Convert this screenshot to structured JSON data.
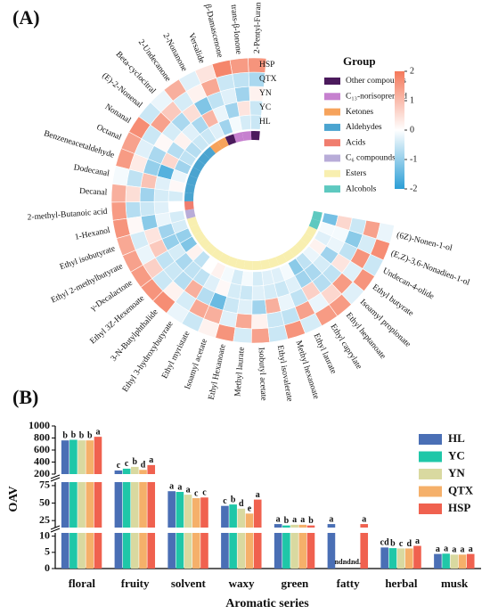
{
  "chart_data": [
    {
      "type": "circular-heatmap",
      "panel": "(A)",
      "categories": [
        "2-Pentyl-Furan",
        "trans-β-Ionone",
        "β-Damascenone",
        "Versalide",
        "2-Nonanone",
        "2-Undecanone",
        "Beta-cyclocitral",
        "(E)-2-Nonenal",
        "Nonanal",
        "Octanal",
        "Benzeneacetaldehyde",
        "Dodecanal",
        "Decanal",
        "2-methyl-Butanoic acid",
        "1-Hexanol",
        "Ethyl isobutyrate",
        "Ethyl 2-methylbutyrate",
        "γ-Decalactone",
        "Ethyl 3Z-Hexenoate",
        "3-N-Butylphthalide",
        "Ethyl 3-hydroxybutyrate",
        "Ethyl myristate",
        "Isoamyl acetate",
        "Ethyl Hexanoate",
        "Methyl laurate",
        "Isobutyl acetate",
        "Ethyl isovalerate",
        "Methyl hexanoate",
        "Ethyl laurate",
        "Ethyl caprylate",
        "Ethyl heptanoate",
        "Isoamyl propionate",
        "Ethyl butyrate",
        "Undecan-4-olide",
        "(E,Z)-3,6-Nonadien-1-ol",
        "(6Z)-Nonen-1-ol"
      ],
      "groups": [
        0,
        1,
        1,
        0,
        2,
        2,
        3,
        3,
        3,
        3,
        3,
        3,
        3,
        4,
        5,
        6,
        6,
        6,
        6,
        6,
        6,
        6,
        6,
        6,
        6,
        6,
        6,
        6,
        6,
        6,
        6,
        6,
        6,
        6,
        7,
        7
      ],
      "series": [
        {
          "name": "HL",
          "values": [
            -0.5,
            -0.4,
            -0.1,
            -0.9,
            -0.3,
            -0.5,
            -0.5,
            -0.7,
            -0.6,
            -0.9,
            -0.2,
            0.1,
            -0.4,
            0,
            -0.4,
            -0.4,
            -1.0,
            -1.2,
            0.2,
            -0.6,
            0,
            0.2,
            -0.1,
            -0.4,
            -0.1,
            -0.4,
            -0.3,
            -0.3,
            -0.1,
            -1.1,
            -0.6,
            -0.2,
            0.2,
            -0.3,
            -0.1,
            -1.3
          ]
        },
        {
          "name": "YC",
          "values": [
            -0.5,
            0.4,
            -0.9,
            -0.2,
            1.1,
            -0.8,
            -0.3,
            0.2,
            -0.7,
            0.6,
            -1.6,
            -0.3,
            -0.4,
            -0.3,
            -0.2,
            -0.9,
            -1.0,
            -0.4,
            -0.8,
            -0.6,
            -0.6,
            -0.3,
            0.1,
            -0.4,
            -0.5,
            -0.3,
            -0.4,
            -0.5,
            -0.3,
            -0.9,
            -0.8,
            -0.4,
            -0.9,
            -0.2,
            -0.1,
            0.6
          ]
        },
        {
          "name": "YN",
          "values": [
            0.2,
            -0.9,
            -0.3,
            -0.6,
            -1.2,
            0.5,
            -0.8,
            -0.4,
            0.1,
            -0.8,
            -1.0,
            0.9,
            -0.9,
            -0.5,
            -1.1,
            0.4,
            0.8,
            -0.6,
            -0.5,
            -0.7,
            1.2,
            -0.7,
            -1.4,
            -0.5,
            -0.3,
            -0.9,
            1.2,
            -0.2,
            -0.6,
            0.7,
            -0.7,
            -0.6,
            0.4,
            -0.6,
            -1.1,
            -0.5
          ]
        },
        {
          "name": "QTX",
          "values": [
            -0.8,
            -0.6,
            -0.5,
            1.3,
            0.2,
            -0.4,
            0.8,
            1.4,
            -0.5,
            -0.3,
            0.3,
            -0.6,
            0.5,
            -0.7,
            0.1,
            -0.4,
            -0.2,
            0.7,
            -0.5,
            0.2,
            -0.4,
            1.3,
            1.2,
            -0.3,
            1.3,
            0.2,
            -0.5,
            -0.6,
            1.4,
            -0.2,
            0.6,
            1.5,
            -0.3,
            1.6,
            -0.4,
            1.4
          ]
        },
        {
          "name": "HSP",
          "values": [
            1.6,
            1.5,
            1.8,
            0.4,
            -0.3,
            1.2,
            -0.2,
            -0.5,
            1.7,
            1.4,
            1.5,
            -0.1,
            1.2,
            1.5,
            1.6,
            1.3,
            1.4,
            1.5,
            1.6,
            1.7,
            -0.2,
            -0.5,
            0.2,
            1.6,
            -0.4,
            1.4,
            -0.5,
            1.6,
            -0.4,
            1.5,
            1.5,
            -0.3,
            1.6,
            -0.5,
            1.7,
            -0.2
          ]
        }
      ],
      "legend_title": "Group",
      "group_legend": [
        {
          "name": "Other compounds",
          "color": "#4b1a5c"
        },
        {
          "name": "C₁₃-norisoprenoid",
          "color": "#c680cf"
        },
        {
          "name": "Ketones",
          "color": "#f6a35c"
        },
        {
          "name": "Aldehydes",
          "color": "#4ba4d0"
        },
        {
          "name": "Acids",
          "color": "#f07d6e"
        },
        {
          "name": "C₆ compounds",
          "color": "#b8acd8"
        },
        {
          "name": "Esters",
          "color": "#f8efb0"
        },
        {
          "name": "Alcohols",
          "color": "#5ec9c0"
        }
      ],
      "colorbar": {
        "lim": [
          -2,
          2
        ],
        "ticks": [
          2,
          1,
          0,
          -1,
          -2
        ],
        "low": "#2b9ed6",
        "mid": "#ffffff",
        "high": "#f4795b"
      }
    },
    {
      "type": "broken-bar",
      "panel": "(B)",
      "categories": [
        "floral",
        "fruity",
        "solvent",
        "waxy",
        "green",
        "fatty",
        "herbal",
        "musk"
      ],
      "xlabel": "Aromatic series",
      "ylabel": "OAV",
      "segments": [
        {
          "ylim": [
            200,
            1000
          ],
          "yticks": [
            200,
            400,
            600,
            800,
            1000
          ]
        },
        {
          "ylim": [
            15,
            80
          ],
          "yticks": [
            25,
            50,
            75
          ]
        },
        {
          "ylim": [
            0,
            11
          ],
          "yticks": [
            0,
            5,
            10
          ]
        }
      ],
      "series": [
        {
          "name": "HL",
          "color": "#4a6fb5",
          "values": [
            760,
            260,
            67,
            46,
            20,
            20,
            6.5,
            4.5
          ],
          "letters": [
            "b",
            "c",
            "a",
            "c",
            "a",
            "a",
            "cd",
            "a"
          ]
        },
        {
          "name": "YC",
          "color": "#1fc7a8",
          "values": [
            770,
            290,
            66,
            48,
            18,
            null,
            6.3,
            4.6
          ],
          "letters": [
            "b",
            "c",
            "a",
            "b",
            "b",
            "nd.",
            "b",
            "a"
          ]
        },
        {
          "name": "YN",
          "color": "#d9d9a0",
          "values": [
            760,
            320,
            62,
            42,
            19,
            null,
            6.2,
            4.3
          ],
          "letters": [
            "b",
            "b",
            "a",
            "d",
            "a",
            "nd.",
            "c",
            "a"
          ]
        },
        {
          "name": "QTX",
          "color": "#f5b06a",
          "values": [
            760,
            270,
            57,
            35,
            19,
            null,
            6.2,
            4.3
          ],
          "letters": [
            "b",
            "d",
            "c",
            "e",
            "a",
            "nd.",
            "d",
            "a"
          ]
        },
        {
          "name": "HSP",
          "color": "#f0614f",
          "values": [
            820,
            350,
            58,
            55,
            18,
            20,
            7,
            4.5
          ],
          "letters": [
            "a",
            "a",
            "c",
            "a",
            "b",
            "a",
            "a",
            "a"
          ]
        }
      ]
    }
  ]
}
